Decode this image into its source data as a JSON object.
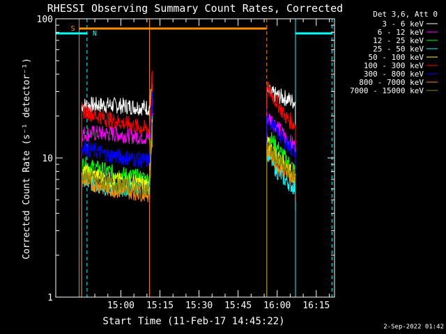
{
  "chart_data": {
    "type": "line",
    "title": "RHESSI Observing Summary Count Rates, Corrected",
    "xlabel": "Start Time (11-Feb-17 14:45:22)",
    "ylabel": "Corrected Count Rate (s⁻¹ detector⁻¹)",
    "yscale": "log",
    "ylim": [
      1,
      100
    ],
    "xlim_minutes": [
      -10,
      97
    ],
    "x_tick_labels": [
      "15:00",
      "15:15",
      "15:30",
      "15:45",
      "16:00",
      "16:15"
    ],
    "x_tick_minutes": [
      15,
      30,
      45,
      60,
      75,
      90
    ],
    "y_tick_labels": [
      "1",
      "10",
      "100"
    ],
    "y_tick_values": [
      1,
      10,
      100
    ],
    "legend_header": "Det 3,6, Att 0",
    "legend_position": "top-right",
    "series": [
      {
        "name": "3 - 6 keV",
        "color": "#ffffff",
        "segments": [
          [
            [
              0,
              24
            ],
            [
              10,
              24
            ],
            [
              26,
              23
            ],
            [
              27,
              34
            ]
          ],
          [
            [
              71,
              30
            ],
            [
              75,
              28
            ],
            [
              78,
              27
            ],
            [
              82,
              25
            ]
          ]
        ]
      },
      {
        "name": "6 - 12 keV",
        "color": "#ff00ff",
        "segments": [
          [
            [
              0,
              15
            ],
            [
              10,
              15
            ],
            [
              26,
              14
            ],
            [
              27,
              26
            ]
          ],
          [
            [
              71,
              20
            ],
            [
              75,
              17
            ],
            [
              78,
              14
            ],
            [
              82,
              12
            ]
          ]
        ]
      },
      {
        "name": "12 - 25 keV",
        "color": "#00ff00",
        "segments": [
          [
            [
              0,
              9
            ],
            [
              10,
              8
            ],
            [
              26,
              7
            ],
            [
              27,
              20
            ]
          ],
          [
            [
              71,
              15
            ],
            [
              75,
              12
            ],
            [
              78,
              10
            ],
            [
              82,
              8
            ]
          ]
        ]
      },
      {
        "name": "25 - 50 keV",
        "color": "#00ffff",
        "segments": [
          [
            [
              0,
              7
            ],
            [
              10,
              6
            ],
            [
              26,
              6
            ],
            [
              27,
              18
            ]
          ],
          [
            [
              71,
              11
            ],
            [
              75,
              8
            ],
            [
              78,
              7
            ],
            [
              82,
              6
            ]
          ]
        ]
      },
      {
        "name": "50 - 100 keV",
        "color": "#ffff00",
        "segments": [
          [
            [
              0,
              8
            ],
            [
              10,
              7
            ],
            [
              26,
              6.5
            ],
            [
              27,
              19
            ]
          ],
          [
            [
              71,
              13
            ],
            [
              75,
              10
            ],
            [
              78,
              9
            ],
            [
              82,
              7
            ]
          ]
        ]
      },
      {
        "name": "100 - 300 keV",
        "color": "#ff0000",
        "segments": [
          [
            [
              0,
              22
            ],
            [
              10,
              19
            ],
            [
              26,
              16
            ],
            [
              27,
              42
            ]
          ],
          [
            [
              71,
              32
            ],
            [
              75,
              25
            ],
            [
              78,
              20
            ],
            [
              82,
              17
            ]
          ]
        ]
      },
      {
        "name": "300 - 800 keV",
        "color": "#0000ff",
        "segments": [
          [
            [
              0,
              12
            ],
            [
              10,
              10.5
            ],
            [
              26,
              9.5
            ],
            [
              27,
              30
            ]
          ],
          [
            [
              71,
              20
            ],
            [
              75,
              15
            ],
            [
              78,
              13
            ],
            [
              82,
              11
            ]
          ]
        ]
      },
      {
        "name": "800 - 7000 keV",
        "color": "#ff8c00",
        "segments": [
          [
            [
              0,
              7
            ],
            [
              10,
              6
            ],
            [
              26,
              5.5
            ],
            [
              27,
              17
            ]
          ],
          [
            [
              71,
              12
            ],
            [
              75,
              9
            ],
            [
              78,
              8
            ],
            [
              82,
              7
            ]
          ]
        ]
      },
      {
        "name": "7000 - 15000 keV",
        "color": "#8b8b00",
        "segments": [
          [
            [
              0,
              7.5
            ],
            [
              10,
              6.5
            ],
            [
              26,
              6
            ],
            [
              27,
              18
            ]
          ],
          [
            [
              71,
              12.5
            ],
            [
              75,
              9.5
            ],
            [
              78,
              8.5
            ],
            [
              82,
              7.5
            ]
          ]
        ]
      }
    ],
    "flag_markers": [
      {
        "label": "N",
        "color": "#00ffff",
        "bars": [
          [
            -10,
            2
          ],
          [
            82,
            96
          ]
        ],
        "lines_solid": [
          -10,
          82
        ],
        "lines_dashed": [
          2,
          96
        ]
      },
      {
        "label": "S",
        "color": "#ff8c00",
        "bars": [
          [
            -1,
            71
          ]
        ],
        "lines_solid": [
          -1,
          26
        ],
        "lines_dashed": [
          71
        ]
      }
    ],
    "footer_date": "2-Sep-2022 01:42"
  }
}
